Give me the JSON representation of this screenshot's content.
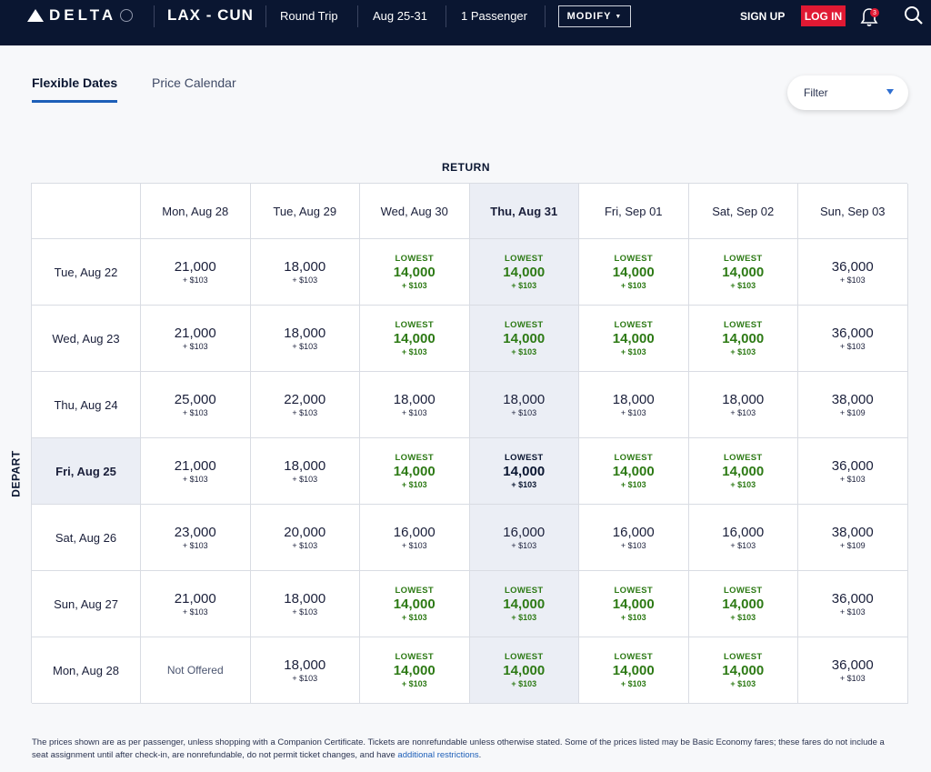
{
  "header": {
    "brand": "DELTA",
    "route": "LAX - CUN",
    "trip_type": "Round Trip",
    "dates": "Aug 25-31",
    "passengers": "1 Passenger",
    "modify_label": "MODIFY",
    "signup_label": "SIGN UP",
    "login_label": "LOG IN",
    "notification_count": "3",
    "colors": {
      "nav_bg": "#0a1631",
      "login_bg": "#e01933"
    }
  },
  "tabs": [
    {
      "label": "Flexible Dates",
      "active": true
    },
    {
      "label": "Price Calendar",
      "active": false
    }
  ],
  "filter": {
    "label": "Filter"
  },
  "grid": {
    "return_label": "RETURN",
    "depart_label": "DEPART",
    "return_dates": [
      "Mon, Aug 28",
      "Tue, Aug 29",
      "Wed, Aug 30",
      "Thu, Aug 31",
      "Fri, Sep 01",
      "Sat, Sep 02",
      "Sun, Sep 03"
    ],
    "selected_return_index": 3,
    "selected_depart_index": 3,
    "lowest_label": "LOWEST",
    "rows": [
      {
        "depart": "Tue, Aug 22",
        "cells": [
          {
            "price": "21,000",
            "tax": "+ $103",
            "lowest": false
          },
          {
            "price": "18,000",
            "tax": "+ $103",
            "lowest": false
          },
          {
            "price": "14,000",
            "tax": "+ $103",
            "lowest": true
          },
          {
            "price": "14,000",
            "tax": "+ $103",
            "lowest": true
          },
          {
            "price": "14,000",
            "tax": "+ $103",
            "lowest": true
          },
          {
            "price": "14,000",
            "tax": "+ $103",
            "lowest": true
          },
          {
            "price": "36,000",
            "tax": "+ $103",
            "lowest": false
          }
        ]
      },
      {
        "depart": "Wed, Aug 23",
        "cells": [
          {
            "price": "21,000",
            "tax": "+ $103",
            "lowest": false
          },
          {
            "price": "18,000",
            "tax": "+ $103",
            "lowest": false
          },
          {
            "price": "14,000",
            "tax": "+ $103",
            "lowest": true
          },
          {
            "price": "14,000",
            "tax": "+ $103",
            "lowest": true
          },
          {
            "price": "14,000",
            "tax": "+ $103",
            "lowest": true
          },
          {
            "price": "14,000",
            "tax": "+ $103",
            "lowest": true
          },
          {
            "price": "36,000",
            "tax": "+ $103",
            "lowest": false
          }
        ]
      },
      {
        "depart": "Thu, Aug 24",
        "cells": [
          {
            "price": "25,000",
            "tax": "+ $103",
            "lowest": false
          },
          {
            "price": "22,000",
            "tax": "+ $103",
            "lowest": false
          },
          {
            "price": "18,000",
            "tax": "+ $103",
            "lowest": false
          },
          {
            "price": "18,000",
            "tax": "+ $103",
            "lowest": false
          },
          {
            "price": "18,000",
            "tax": "+ $103",
            "lowest": false
          },
          {
            "price": "18,000",
            "tax": "+ $103",
            "lowest": false
          },
          {
            "price": "38,000",
            "tax": "+ $109",
            "lowest": false
          }
        ]
      },
      {
        "depart": "Fri, Aug 25",
        "cells": [
          {
            "price": "21,000",
            "tax": "+ $103",
            "lowest": false
          },
          {
            "price": "18,000",
            "tax": "+ $103",
            "lowest": false
          },
          {
            "price": "14,000",
            "tax": "+ $103",
            "lowest": true
          },
          {
            "price": "14,000",
            "tax": "+ $103",
            "lowest": true
          },
          {
            "price": "14,000",
            "tax": "+ $103",
            "lowest": true
          },
          {
            "price": "14,000",
            "tax": "+ $103",
            "lowest": true
          },
          {
            "price": "36,000",
            "tax": "+ $103",
            "lowest": false
          }
        ]
      },
      {
        "depart": "Sat, Aug 26",
        "cells": [
          {
            "price": "23,000",
            "tax": "+ $103",
            "lowest": false
          },
          {
            "price": "20,000",
            "tax": "+ $103",
            "lowest": false
          },
          {
            "price": "16,000",
            "tax": "+ $103",
            "lowest": false
          },
          {
            "price": "16,000",
            "tax": "+ $103",
            "lowest": false
          },
          {
            "price": "16,000",
            "tax": "+ $103",
            "lowest": false
          },
          {
            "price": "16,000",
            "tax": "+ $103",
            "lowest": false
          },
          {
            "price": "38,000",
            "tax": "+ $109",
            "lowest": false
          }
        ]
      },
      {
        "depart": "Sun, Aug 27",
        "cells": [
          {
            "price": "21,000",
            "tax": "+ $103",
            "lowest": false
          },
          {
            "price": "18,000",
            "tax": "+ $103",
            "lowest": false
          },
          {
            "price": "14,000",
            "tax": "+ $103",
            "lowest": true
          },
          {
            "price": "14,000",
            "tax": "+ $103",
            "lowest": true
          },
          {
            "price": "14,000",
            "tax": "+ $103",
            "lowest": true
          },
          {
            "price": "14,000",
            "tax": "+ $103",
            "lowest": true
          },
          {
            "price": "36,000",
            "tax": "+ $103",
            "lowest": false
          }
        ]
      },
      {
        "depart": "Mon, Aug 28",
        "cells": [
          {
            "not_offered": "Not Offered"
          },
          {
            "price": "18,000",
            "tax": "+ $103",
            "lowest": false
          },
          {
            "price": "14,000",
            "tax": "+ $103",
            "lowest": true
          },
          {
            "price": "14,000",
            "tax": "+ $103",
            "lowest": true
          },
          {
            "price": "14,000",
            "tax": "+ $103",
            "lowest": true
          },
          {
            "price": "14,000",
            "tax": "+ $103",
            "lowest": true
          },
          {
            "price": "36,000",
            "tax": "+ $103",
            "lowest": false
          }
        ]
      }
    ]
  },
  "footer": {
    "text": "The prices shown are as per passenger, unless shopping with a Companion Certificate. Tickets are nonrefundable unless otherwise stated. Some of the prices listed may be Basic Economy fares; these fares do not include a seat assignment until after check-in, are nonrefundable, do not permit ticket changes, and have",
    "link": "additional restrictions",
    "end": "."
  }
}
